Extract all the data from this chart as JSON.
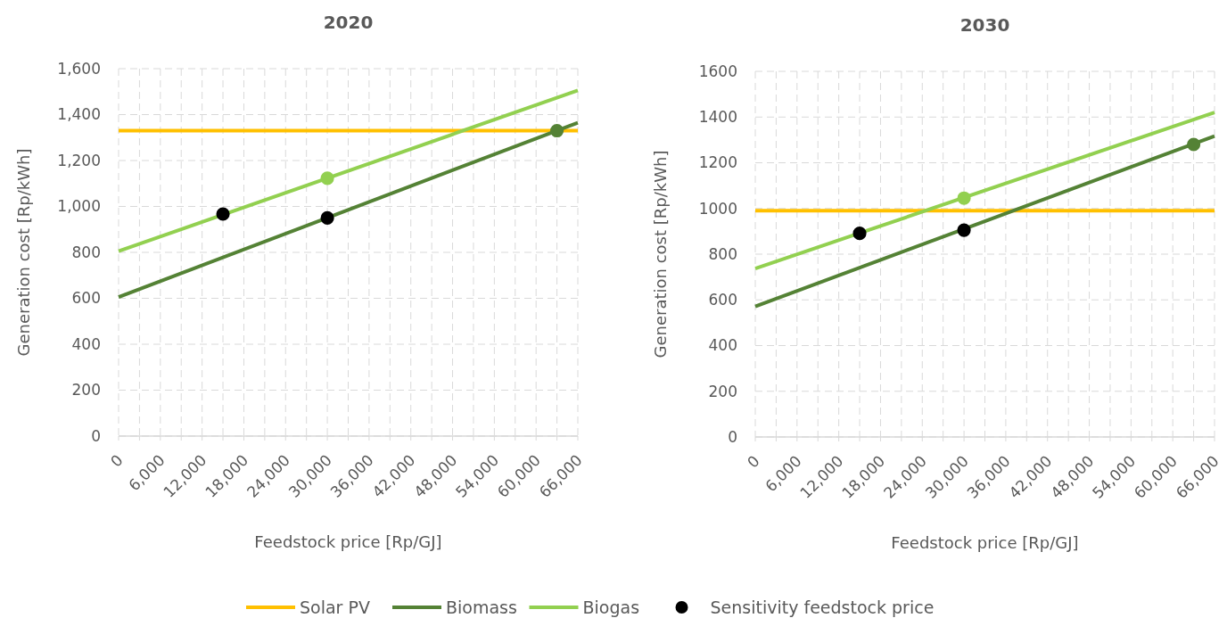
{
  "chart_data": [
    {
      "type": "line",
      "title": "2020",
      "xlabel": "Feedstock price [Rp/GJ]",
      "ylabel": "Generation cost [Rp/kWh]",
      "xlim": [
        0,
        66000
      ],
      "xticks": [
        0,
        {
          "value": 3000,
          "label": null
        },
        {
          "value": 6000,
          "label": "6,000"
        },
        {
          "value": 9000,
          "label": null
        },
        {
          "value": 12000,
          "label": "12,000"
        },
        {
          "value": 15000,
          "label": null
        },
        {
          "value": 18000,
          "label": "18,000"
        },
        {
          "value": 21000,
          "label": null
        },
        {
          "value": 24000,
          "label": "24,000"
        },
        {
          "value": 27000,
          "label": null
        },
        {
          "value": 30000,
          "label": "30,000"
        },
        {
          "value": 33000,
          "label": null
        },
        {
          "value": 36000,
          "label": "36,000"
        },
        {
          "value": 39000,
          "label": null
        },
        {
          "value": 42000,
          "label": "42,000"
        },
        {
          "value": 45000,
          "label": null
        },
        {
          "value": 48000,
          "label": "48,000"
        },
        {
          "value": 51000,
          "label": null
        },
        {
          "value": 54000,
          "label": "54,000"
        },
        {
          "value": 57000,
          "label": null
        },
        {
          "value": 60000,
          "label": "60,000"
        },
        {
          "value": 63000,
          "label": null
        },
        {
          "value": 66000,
          "label": "66,000"
        }
      ],
      "ylim": [
        0,
        1600
      ],
      "yticks": [
        0,
        200,
        400,
        600,
        800,
        {
          "value": 1000,
          "label": "1,000"
        },
        {
          "value": 1200,
          "label": "1,200"
        },
        {
          "value": 1400,
          "label": "1,400"
        },
        {
          "value": 1600,
          "label": "1,600"
        }
      ],
      "grid": true,
      "legend": "bottom",
      "marker": "none",
      "line_style": "solid",
      "series": [
        {
          "name": "Solar PV",
          "color": "#ffc000",
          "x": [
            0,
            66000
          ],
          "values": [
            1330,
            1330
          ]
        },
        {
          "name": "Biomass",
          "color": "#548235",
          "x": [
            0,
            66000
          ],
          "values": [
            605,
            1365
          ]
        },
        {
          "name": "Biogas",
          "color": "#92d050",
          "x": [
            0,
            66000
          ],
          "values": [
            805,
            1505
          ]
        },
        {
          "type": "scatter",
          "marker": "circle",
          "color": "#92d050",
          "x": [
            30000
          ],
          "values": [
            1123
          ]
        },
        {
          "type": "scatter",
          "marker": "circle",
          "color": "#548235",
          "x": [
            63000
          ],
          "values": [
            1330
          ]
        },
        {
          "name": "Sensitivity feedstock price",
          "type": "scatter",
          "marker": "circle",
          "color": "#000000",
          "x": [
            15000,
            30000
          ],
          "values": [
            967,
            950
          ]
        }
      ]
    },
    {
      "type": "line",
      "title": "2030",
      "xlabel": "Feedstock price [Rp/GJ]",
      "ylabel": "Generation cost [Rp/kWh]",
      "xlim": [
        0,
        66000
      ],
      "xticks": [
        0,
        {
          "value": 3000,
          "label": null
        },
        {
          "value": 6000,
          "label": "6,000"
        },
        {
          "value": 9000,
          "label": null
        },
        {
          "value": 12000,
          "label": "12,000"
        },
        {
          "value": 15000,
          "label": null
        },
        {
          "value": 18000,
          "label": "18,000"
        },
        {
          "value": 21000,
          "label": null
        },
        {
          "value": 24000,
          "label": "24,000"
        },
        {
          "value": 27000,
          "label": null
        },
        {
          "value": 30000,
          "label": "30,000"
        },
        {
          "value": 33000,
          "label": null
        },
        {
          "value": 36000,
          "label": "36,000"
        },
        {
          "value": 39000,
          "label": null
        },
        {
          "value": 42000,
          "label": "42,000"
        },
        {
          "value": 45000,
          "label": null
        },
        {
          "value": 48000,
          "label": "48,000"
        },
        {
          "value": 51000,
          "label": null
        },
        {
          "value": 54000,
          "label": "54,000"
        },
        {
          "value": 57000,
          "label": null
        },
        {
          "value": 60000,
          "label": "60,000"
        },
        {
          "value": 63000,
          "label": null
        },
        {
          "value": 66000,
          "label": "66,000"
        }
      ],
      "ylim": [
        0,
        1600
      ],
      "yticks": [
        0,
        200,
        400,
        600,
        800,
        1000,
        1200,
        1400,
        1600
      ],
      "grid": true,
      "marker": "none",
      "line_style": "solid",
      "series": [
        {
          "color": "#ffc000",
          "x": [
            0,
            66000
          ],
          "values": [
            990,
            990
          ]
        },
        {
          "color": "#548235",
          "x": [
            0,
            66000
          ],
          "values": [
            571,
            1317
          ]
        },
        {
          "color": "#92d050",
          "x": [
            0,
            66000
          ],
          "values": [
            737,
            1420
          ]
        },
        {
          "type": "scatter",
          "marker": "circle",
          "color": "#92d050",
          "x": [
            30000
          ],
          "values": [
            1045
          ]
        },
        {
          "type": "scatter",
          "marker": "circle",
          "color": "#548235",
          "x": [
            63000
          ],
          "values": [
            1280
          ]
        },
        {
          "type": "scatter",
          "marker": "circle",
          "color": "#000000",
          "x": [
            15000,
            30000
          ],
          "values": [
            891,
            905
          ]
        }
      ]
    }
  ]
}
